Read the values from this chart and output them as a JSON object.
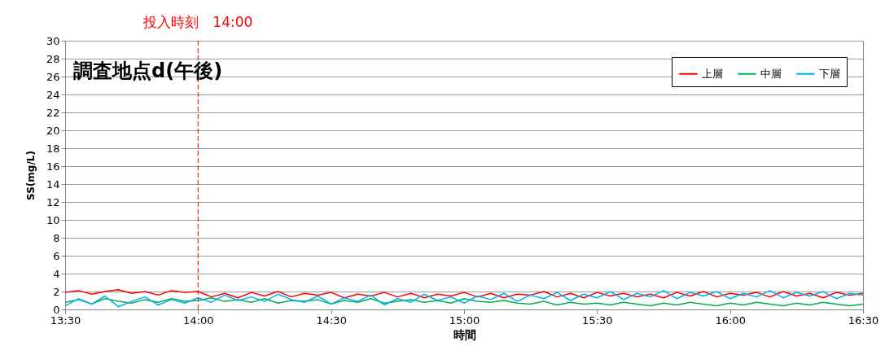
{
  "chart_data": {
    "type": "line",
    "title": "調査地点d(午後)",
    "xlabel": "時間",
    "ylabel": "SS(mg/L)",
    "x": [
      13.5,
      13.55,
      13.6,
      13.65,
      13.7,
      13.75,
      13.8,
      13.85,
      13.9,
      13.95,
      14,
      14.05,
      14.1,
      14.15,
      14.2,
      14.25,
      14.3,
      14.35,
      14.4,
      14.45,
      14.5,
      14.55,
      14.6,
      14.65,
      14.7,
      14.75,
      14.8,
      14.85,
      14.9,
      14.95,
      15,
      15.05,
      15.1,
      15.15,
      15.2,
      15.25,
      15.3,
      15.35,
      15.4,
      15.45,
      15.5,
      15.55,
      15.6,
      15.65,
      15.7,
      15.75,
      15.8,
      15.85,
      15.9,
      15.95,
      16,
      16.05,
      16.1,
      16.15,
      16.2,
      16.25,
      16.3,
      16.35,
      16.4,
      16.45,
      16.5
    ],
    "series": [
      {
        "name": "上層",
        "color": "#ff0000",
        "values": [
          1.9,
          2.1,
          1.7,
          2.0,
          2.2,
          1.8,
          2.0,
          1.6,
          2.1,
          1.9,
          2.0,
          1.4,
          1.8,
          1.3,
          1.9,
          1.5,
          2.0,
          1.4,
          1.8,
          1.6,
          1.9,
          1.3,
          1.7,
          1.5,
          1.9,
          1.4,
          1.8,
          1.3,
          1.7,
          1.5,
          1.9,
          1.4,
          1.8,
          1.3,
          1.7,
          1.6,
          2.0,
          1.4,
          1.8,
          1.3,
          1.9,
          1.5,
          1.8,
          1.4,
          1.7,
          1.3,
          1.9,
          1.5,
          2.0,
          1.4,
          1.8,
          1.6,
          1.9,
          1.4,
          2.0,
          1.5,
          1.8,
          1.3,
          1.9,
          1.6,
          1.8
        ]
      },
      {
        "name": "中層",
        "color": "#00b050",
        "values": [
          0.8,
          1.1,
          0.6,
          1.2,
          0.9,
          0.7,
          1.1,
          0.8,
          1.2,
          0.9,
          1.0,
          1.3,
          0.9,
          1.1,
          0.8,
          1.2,
          0.7,
          1.0,
          0.9,
          1.1,
          0.6,
          1.0,
          0.8,
          1.2,
          0.7,
          0.9,
          1.1,
          0.8,
          1.0,
          0.7,
          1.2,
          0.9,
          0.8,
          1.0,
          0.7,
          0.6,
          0.9,
          0.5,
          0.8,
          0.6,
          0.7,
          0.5,
          0.8,
          0.6,
          0.4,
          0.7,
          0.5,
          0.8,
          0.6,
          0.4,
          0.7,
          0.5,
          0.8,
          0.6,
          0.4,
          0.7,
          0.5,
          0.8,
          0.6,
          0.4,
          0.6
        ]
      },
      {
        "name": "下層",
        "color": "#00b0f0",
        "values": [
          0.4,
          1.2,
          0.6,
          1.5,
          0.3,
          0.9,
          1.4,
          0.5,
          1.1,
          0.7,
          1.3,
          0.8,
          1.6,
          1.0,
          1.4,
          0.9,
          1.7,
          1.1,
          0.8,
          1.5,
          0.6,
          1.3,
          0.9,
          1.6,
          0.5,
          1.2,
          0.8,
          1.7,
          1.0,
          1.4,
          0.7,
          1.5,
          1.1,
          1.8,
          0.9,
          1.6,
          1.2,
          1.9,
          1.0,
          1.7,
          1.3,
          2.0,
          1.1,
          1.8,
          1.4,
          2.1,
          1.2,
          1.9,
          1.5,
          2.0,
          1.2,
          1.8,
          1.4,
          2.1,
          1.3,
          1.9,
          1.5,
          2.0,
          1.2,
          1.8,
          1.6
        ]
      }
    ],
    "xlim": [
      13.5,
      16.5
    ],
    "xticks": [
      {
        "value": 13.5,
        "label": "13:30"
      },
      {
        "value": 14,
        "label": "14:00"
      },
      {
        "value": 14.5,
        "label": "14:30"
      },
      {
        "value": 15,
        "label": "15:00"
      },
      {
        "value": 15.5,
        "label": "15:30"
      },
      {
        "value": 16,
        "label": "16:00"
      },
      {
        "value": 16.5,
        "label": "16:30"
      }
    ],
    "ylim": [
      0,
      30
    ],
    "yticks": [
      0,
      2,
      4,
      6,
      8,
      10,
      12,
      14,
      16,
      18,
      20,
      22,
      24,
      26,
      28,
      30
    ],
    "ref_lines": [
      {
        "axis": "x",
        "value": 14,
        "label": "投入時刻　14:00",
        "color": "#ff0000",
        "line_style": "dashed"
      }
    ],
    "grid": "y",
    "legend": "top right",
    "marker": "none",
    "line_style": "solid"
  }
}
